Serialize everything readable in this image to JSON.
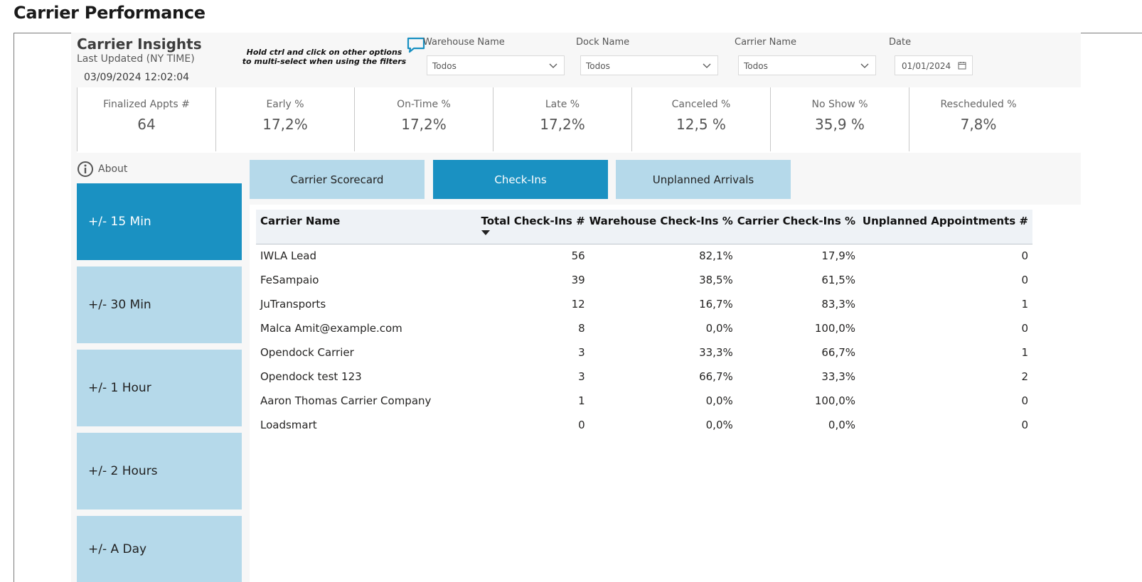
{
  "page": {
    "title": "Carrier Performance"
  },
  "insights": {
    "title": "Carrier Insights",
    "updated_label": "Last Updated (NY TIME)",
    "updated_value": "03/09/2024 12:02:04",
    "hint": "Hold ctrl and click on other options to multi-select when using the filters"
  },
  "filters": [
    {
      "label": "Warehouse Name",
      "value": "Todos"
    },
    {
      "label": "Dock Name",
      "value": "Todos"
    },
    {
      "label": "Carrier Name",
      "value": "Todos"
    },
    {
      "label": "Date",
      "value": "01/01/2024"
    }
  ],
  "kpis": [
    {
      "label": "Finalized Appts #",
      "value": "64"
    },
    {
      "label": "Early %",
      "value": "17,2%"
    },
    {
      "label": "On-Time %",
      "value": "17,2%"
    },
    {
      "label": "Late %",
      "value": "17,2%"
    },
    {
      "label": "Canceled %",
      "value": "12,5 %"
    },
    {
      "label": "No Show %",
      "value": "35,9 %"
    },
    {
      "label": "Rescheduled %",
      "value": "7,8%"
    }
  ],
  "about": {
    "label": "About"
  },
  "slicers": [
    {
      "label": "+/- 15 Min",
      "active": true
    },
    {
      "label": "+/- 30 Min",
      "active": false
    },
    {
      "label": "+/- 1 Hour",
      "active": false
    },
    {
      "label": "+/- 2 Hours",
      "active": false
    },
    {
      "label": "+/- A Day",
      "active": false
    }
  ],
  "tabs": [
    {
      "label": "Carrier Scorecard",
      "active": false
    },
    {
      "label": "Check-Ins",
      "active": true
    },
    {
      "label": "Unplanned Arrivals",
      "active": false
    }
  ],
  "table": {
    "columns": [
      "Carrier Name",
      "Total Check-Ins #",
      "Warehouse Check-Ins %",
      "Carrier Check-Ins %",
      "Unplanned Appointments #"
    ],
    "rows": [
      [
        "IWLA Lead",
        "56",
        "82,1%",
        "17,9%",
        "0"
      ],
      [
        "FeSampaio",
        "39",
        "38,5%",
        "61,5%",
        "0"
      ],
      [
        "JuTransports",
        "12",
        "16,7%",
        "83,3%",
        "1"
      ],
      [
        "Malca Amit@example.com",
        "8",
        "0,0%",
        "100,0%",
        "0"
      ],
      [
        "Opendock Carrier",
        "3",
        "33,3%",
        "66,7%",
        "1"
      ],
      [
        "Opendock test 123",
        "3",
        "66,7%",
        "33,3%",
        "2"
      ],
      [
        "Aaron Thomas Carrier Company",
        "1",
        "0,0%",
        "100,0%",
        "0"
      ],
      [
        "Loadsmart",
        "0",
        "0,0%",
        "0,0%",
        "0"
      ]
    ]
  },
  "colors": {
    "accent": "#1a91c2",
    "accent_light": "#b5d9ea",
    "header_bg": "#eef2f6"
  }
}
